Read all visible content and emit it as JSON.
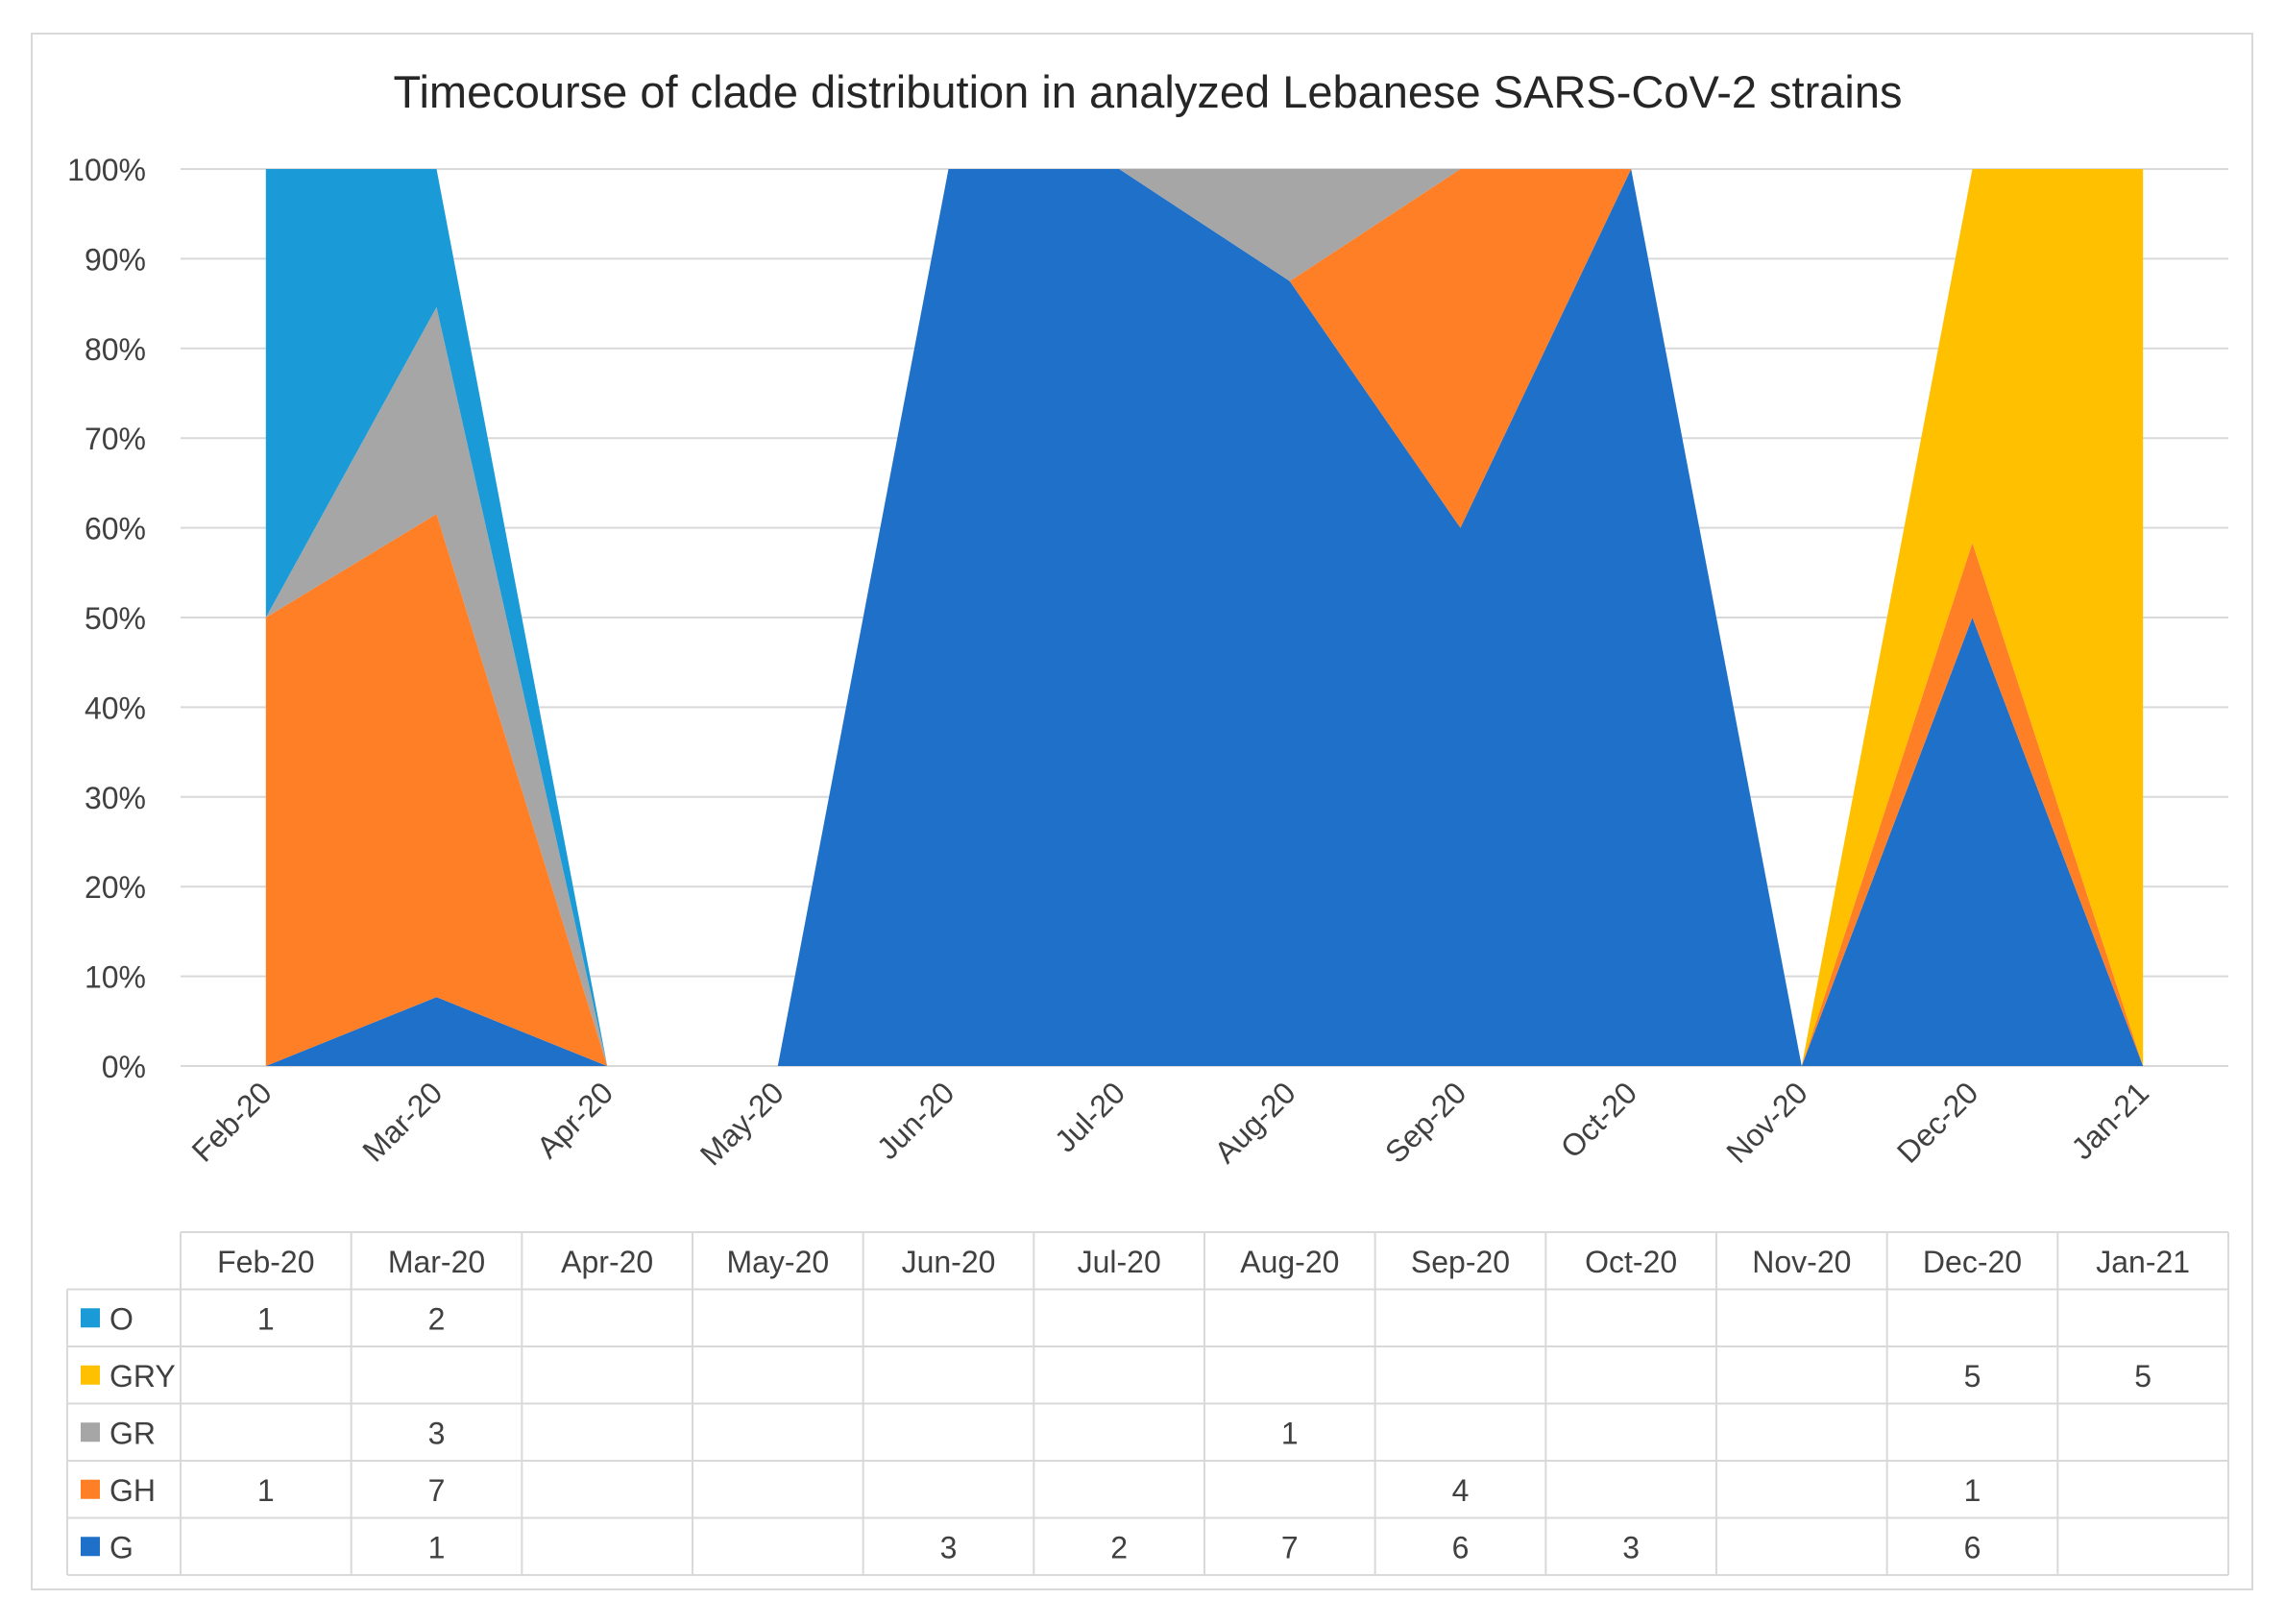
{
  "chart_data": {
    "type": "area",
    "stacked": "percent",
    "title": "Timecourse of clade distribution in analyzed Lebanese SARS-CoV-2 strains",
    "categories": [
      "Feb-20",
      "Mar-20",
      "Apr-20",
      "May-20",
      "Jun-20",
      "Jul-20",
      "Aug-20",
      "Sep-20",
      "Oct-20",
      "Nov-20",
      "Dec-20",
      "Jan-21"
    ],
    "y_ticks": [
      "0%",
      "10%",
      "20%",
      "30%",
      "40%",
      "50%",
      "60%",
      "70%",
      "80%",
      "90%",
      "100%"
    ],
    "ylim": [
      0,
      100
    ],
    "gridlines": true,
    "legend_placement": "data-table",
    "series": [
      {
        "name": "G",
        "color": "#1f70c9",
        "values": [
          null,
          1,
          null,
          null,
          3,
          2,
          7,
          6,
          3,
          null,
          6,
          null
        ]
      },
      {
        "name": "GH",
        "color": "#ff7f27",
        "values": [
          1,
          7,
          null,
          null,
          null,
          null,
          null,
          4,
          null,
          null,
          1,
          null
        ]
      },
      {
        "name": "GR",
        "color": "#a6a6a6",
        "values": [
          null,
          3,
          null,
          null,
          null,
          null,
          1,
          null,
          null,
          null,
          null,
          null
        ]
      },
      {
        "name": "GRY",
        "color": "#ffc000",
        "values": [
          null,
          null,
          null,
          null,
          null,
          null,
          null,
          null,
          null,
          null,
          5,
          5
        ]
      },
      {
        "name": "O",
        "color": "#1a9ad7",
        "values": [
          1,
          2,
          null,
          null,
          null,
          null,
          null,
          null,
          null,
          null,
          null,
          null
        ]
      }
    ],
    "table_row_order": [
      "O",
      "GRY",
      "GR",
      "GH",
      "G"
    ]
  }
}
